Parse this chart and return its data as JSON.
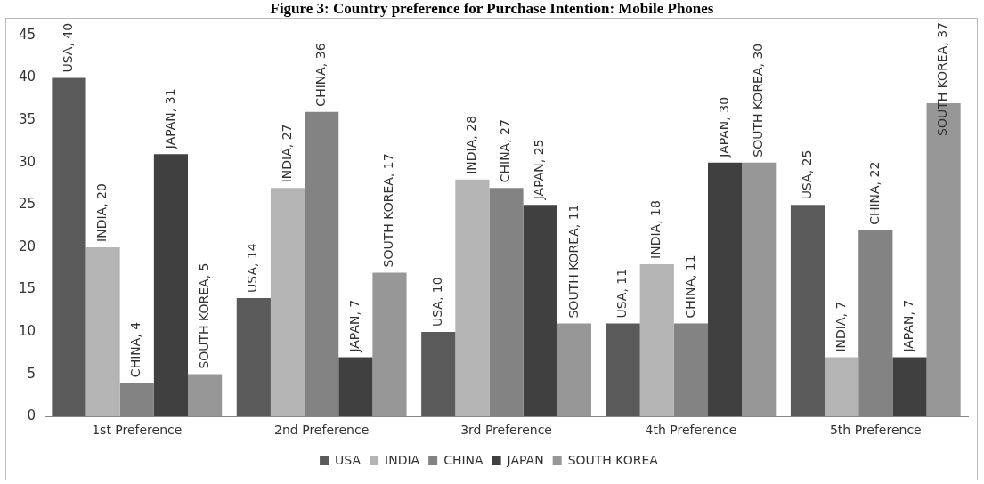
{
  "chart_data": {
    "type": "bar",
    "title": "Figure 3: Country preference for Purchase Intention: Mobile Phones",
    "categories": [
      "1st Preference",
      "2nd Preference",
      "3rd Preference",
      "4th Preference",
      "5th Preference"
    ],
    "series": [
      {
        "name": "USA",
        "color": "#5a5a5a",
        "values": [
          40,
          14,
          10,
          11,
          25
        ],
        "value_labels": [
          "USA, 40",
          "USA, 14",
          "USA, 10",
          "USA, 11",
          "USA, 25"
        ]
      },
      {
        "name": "INDIA",
        "color": "#b4b4b4",
        "values": [
          20,
          27,
          28,
          18,
          7
        ],
        "value_labels": [
          "INDIA, 20",
          "INDIA, 27",
          "INDIA, 28",
          "INDIA, 18",
          "INDIA, 7"
        ]
      },
      {
        "name": "CHINA",
        "color": "#838383",
        "values": [
          4,
          36,
          27,
          11,
          22
        ],
        "value_labels": [
          "CHINA, 4",
          "CHINA, 36",
          "CHINA, 27",
          "CHINA, 11",
          "CHINA, 22"
        ]
      },
      {
        "name": "JAPAN",
        "color": "#404040",
        "values": [
          31,
          7,
          25,
          30,
          7
        ],
        "value_labels": [
          "JAPAN, 31",
          "JAPAN, 7",
          "JAPAN, 25",
          "JAPAN, 30",
          "JAPAN, 7"
        ]
      },
      {
        "name": "SOUTH KOREA",
        "color": "#979797",
        "values": [
          5,
          17,
          11,
          30,
          37
        ],
        "value_labels": [
          "SOUTH KOREA, 5",
          "SOUTH KOREA, 17",
          "SOUTH KOREA, 11",
          "SOUTH KOREA, 30",
          "SOUTH KOREA, 37"
        ]
      }
    ],
    "ylim": [
      0,
      45
    ],
    "yticks": [
      0,
      5,
      10,
      15,
      20,
      25,
      30,
      35,
      40,
      45
    ],
    "grid": false,
    "legend": "bottom"
  }
}
